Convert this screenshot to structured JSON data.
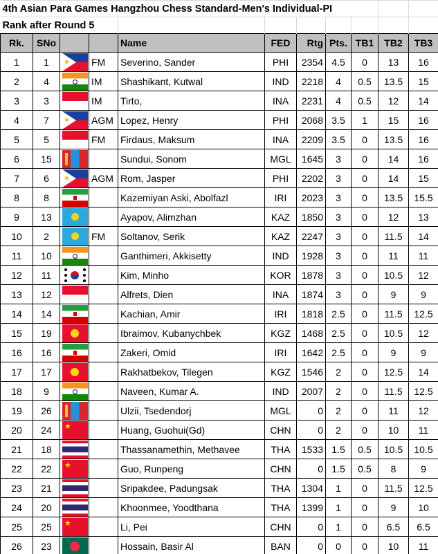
{
  "title": "4th Asian Para Games Hangzhou Chess Standard-Men's  Individual-PI",
  "subtitle": "Rank after Round 5",
  "headers": {
    "rk": "Rk.",
    "sno": "SNo",
    "flag": "",
    "title": "",
    "name": "Name",
    "fed": "FED",
    "rtg": "Rtg",
    "pts": "Pts.",
    "tb1": "TB1",
    "tb2": "TB2",
    "tb3": "TB3"
  },
  "rows": [
    {
      "rk": "1",
      "sno": "1",
      "title": "FM",
      "name": "Severino, Sander",
      "fed": "PHI",
      "rtg": "2354",
      "pts": "4.5",
      "tb1": "0",
      "tb2": "13",
      "tb3": "16"
    },
    {
      "rk": "2",
      "sno": "4",
      "title": "IM",
      "name": "Shashikant, Kutwal",
      "fed": "IND",
      "rtg": "2218",
      "pts": "4",
      "tb1": "0.5",
      "tb2": "13.5",
      "tb3": "15"
    },
    {
      "rk": "3",
      "sno": "3",
      "title": "IM",
      "name": "Tirto,",
      "fed": "INA",
      "rtg": "2231",
      "pts": "4",
      "tb1": "0.5",
      "tb2": "12",
      "tb3": "14"
    },
    {
      "rk": "4",
      "sno": "7",
      "title": "AGM",
      "name": "Lopez, Henry",
      "fed": "PHI",
      "rtg": "2068",
      "pts": "3.5",
      "tb1": "1",
      "tb2": "15",
      "tb3": "16"
    },
    {
      "rk": "5",
      "sno": "5",
      "title": "FM",
      "name": "Firdaus, Maksum",
      "fed": "INA",
      "rtg": "2209",
      "pts": "3.5",
      "tb1": "0",
      "tb2": "13.5",
      "tb3": "16"
    },
    {
      "rk": "6",
      "sno": "15",
      "title": "",
      "name": "Sundui, Sonom",
      "fed": "MGL",
      "rtg": "1645",
      "pts": "3",
      "tb1": "0",
      "tb2": "14",
      "tb3": "16"
    },
    {
      "rk": "7",
      "sno": "6",
      "title": "AGM",
      "name": "Rom, Jasper",
      "fed": "PHI",
      "rtg": "2202",
      "pts": "3",
      "tb1": "0",
      "tb2": "14",
      "tb3": "15"
    },
    {
      "rk": "8",
      "sno": "8",
      "title": "",
      "name": "Kazemiyan Aski, Abolfazl",
      "fed": "IRI",
      "rtg": "2023",
      "pts": "3",
      "tb1": "0",
      "tb2": "13.5",
      "tb3": "15.5"
    },
    {
      "rk": "9",
      "sno": "13",
      "title": "",
      "name": "Ayapov, Alimzhan",
      "fed": "KAZ",
      "rtg": "1850",
      "pts": "3",
      "tb1": "0",
      "tb2": "12",
      "tb3": "13"
    },
    {
      "rk": "10",
      "sno": "2",
      "title": "FM",
      "name": "Soltanov, Serik",
      "fed": "KAZ",
      "rtg": "2247",
      "pts": "3",
      "tb1": "0",
      "tb2": "11.5",
      "tb3": "14"
    },
    {
      "rk": "11",
      "sno": "10",
      "title": "",
      "name": "Ganthimeri, Akkisetty",
      "fed": "IND",
      "rtg": "1928",
      "pts": "3",
      "tb1": "0",
      "tb2": "11",
      "tb3": "11"
    },
    {
      "rk": "12",
      "sno": "11",
      "title": "",
      "name": "Kim, Minho",
      "fed": "KOR",
      "rtg": "1878",
      "pts": "3",
      "tb1": "0",
      "tb2": "10.5",
      "tb3": "12"
    },
    {
      "rk": "13",
      "sno": "12",
      "title": "",
      "name": "Alfrets, Dien",
      "fed": "INA",
      "rtg": "1874",
      "pts": "3",
      "tb1": "0",
      "tb2": "9",
      "tb3": "9"
    },
    {
      "rk": "14",
      "sno": "14",
      "title": "",
      "name": "Kachian, Amir",
      "fed": "IRI",
      "rtg": "1818",
      "pts": "2.5",
      "tb1": "0",
      "tb2": "11.5",
      "tb3": "12.5"
    },
    {
      "rk": "15",
      "sno": "19",
      "title": "",
      "name": "Ibraimov, Kubanychbek",
      "fed": "KGZ",
      "rtg": "1468",
      "pts": "2.5",
      "tb1": "0",
      "tb2": "10.5",
      "tb3": "12"
    },
    {
      "rk": "16",
      "sno": "16",
      "title": "",
      "name": "Zakeri, Omid",
      "fed": "IRI",
      "rtg": "1642",
      "pts": "2.5",
      "tb1": "0",
      "tb2": "9",
      "tb3": "9"
    },
    {
      "rk": "17",
      "sno": "17",
      "title": "",
      "name": "Rakhatbekov, Tilegen",
      "fed": "KGZ",
      "rtg": "1546",
      "pts": "2",
      "tb1": "0",
      "tb2": "12.5",
      "tb3": "14"
    },
    {
      "rk": "18",
      "sno": "9",
      "title": "",
      "name": "Naveen, Kumar A.",
      "fed": "IND",
      "rtg": "2007",
      "pts": "2",
      "tb1": "0",
      "tb2": "11.5",
      "tb3": "12.5"
    },
    {
      "rk": "19",
      "sno": "26",
      "title": "",
      "name": "Ulzii, Tsedendorj",
      "fed": "MGL",
      "rtg": "0",
      "pts": "2",
      "tb1": "0",
      "tb2": "11",
      "tb3": "12"
    },
    {
      "rk": "20",
      "sno": "24",
      "title": "",
      "name": "Huang, Guohui(Gd)",
      "fed": "CHN",
      "rtg": "0",
      "pts": "2",
      "tb1": "0",
      "tb2": "10",
      "tb3": "11"
    },
    {
      "rk": "21",
      "sno": "18",
      "title": "",
      "name": "Thassanamethin, Methavee",
      "fed": "THA",
      "rtg": "1533",
      "pts": "1.5",
      "tb1": "0.5",
      "tb2": "10.5",
      "tb3": "10.5"
    },
    {
      "rk": "22",
      "sno": "22",
      "title": "",
      "name": "Guo, Runpeng",
      "fed": "CHN",
      "rtg": "0",
      "pts": "1.5",
      "tb1": "0.5",
      "tb2": "8",
      "tb3": "9"
    },
    {
      "rk": "23",
      "sno": "21",
      "title": "",
      "name": "Sripakdee, Padungsak",
      "fed": "THA",
      "rtg": "1304",
      "pts": "1",
      "tb1": "0",
      "tb2": "11.5",
      "tb3": "12.5"
    },
    {
      "rk": "24",
      "sno": "20",
      "title": "",
      "name": "Khoonmee, Yoodthana",
      "fed": "THA",
      "rtg": "1399",
      "pts": "1",
      "tb1": "0",
      "tb2": "9",
      "tb3": "10"
    },
    {
      "rk": "25",
      "sno": "25",
      "title": "",
      "name": "Li, Pei",
      "fed": "CHN",
      "rtg": "0",
      "pts": "1",
      "tb1": "0",
      "tb2": "6.5",
      "tb3": "6.5"
    },
    {
      "rk": "26",
      "sno": "23",
      "title": "",
      "name": "Hossain, Basir Al",
      "fed": "BAN",
      "rtg": "0",
      "pts": "0",
      "tb1": "0",
      "tb2": "10",
      "tb3": "11"
    }
  ]
}
